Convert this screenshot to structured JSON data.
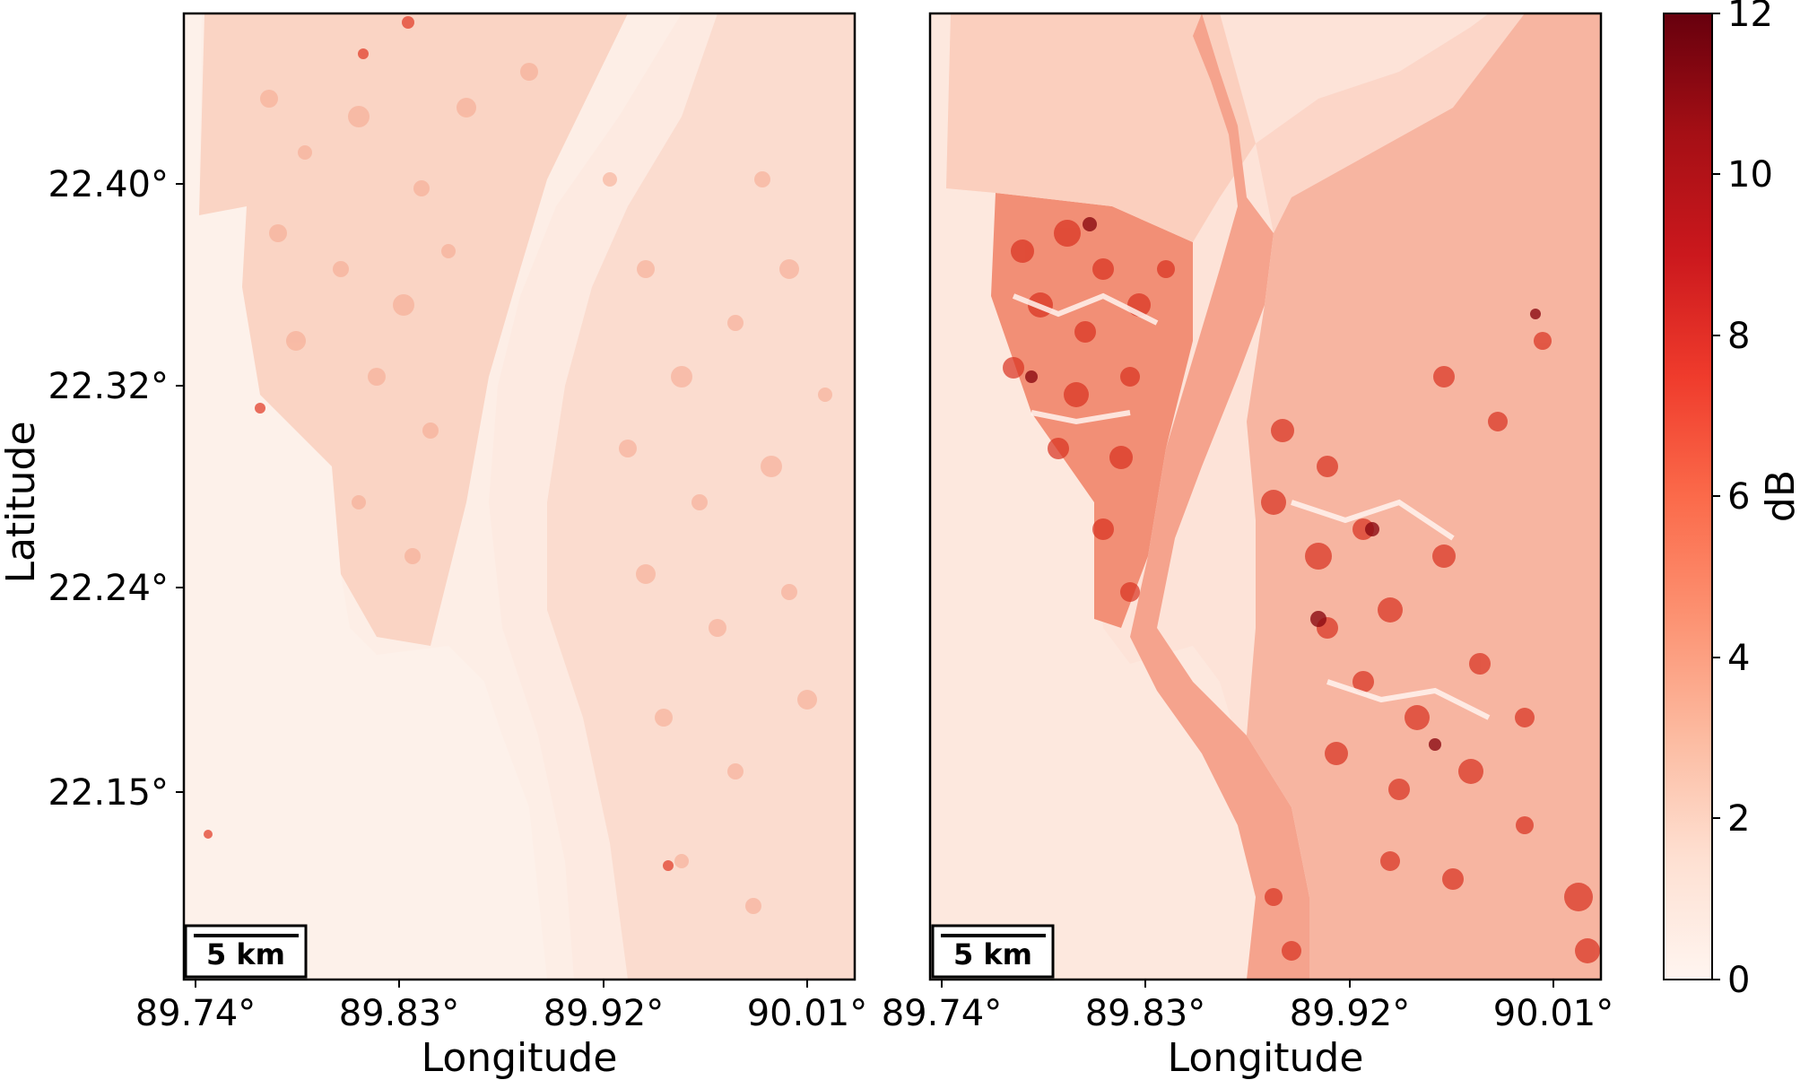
{
  "figure": {
    "y_axis_label": "Latitude",
    "latitude_ticks": [
      "22.40°",
      "22.32°",
      "22.24°",
      "22.15°"
    ],
    "longitude_ticks": [
      "89.74°",
      "89.83°",
      "89.92°",
      "90.01°"
    ],
    "panels": [
      {
        "x_axis_label": "Longitude",
        "scale_bar_label": "5 km",
        "intensity": "low"
      },
      {
        "x_axis_label": "Longitude",
        "scale_bar_label": "5 km",
        "intensity": "high"
      }
    ],
    "colorbar": {
      "label": "dB",
      "colormap": "Reds",
      "range": [
        0,
        12
      ],
      "ticks": [
        "0",
        "2",
        "4",
        "6",
        "8",
        "10",
        "12"
      ],
      "colors": [
        "#fff5f0",
        "#fee0d2",
        "#fcbba1",
        "#fc9272",
        "#fb6a4a",
        "#ef3b2c",
        "#cb181d",
        "#a50f15",
        "#67000d"
      ]
    }
  }
}
